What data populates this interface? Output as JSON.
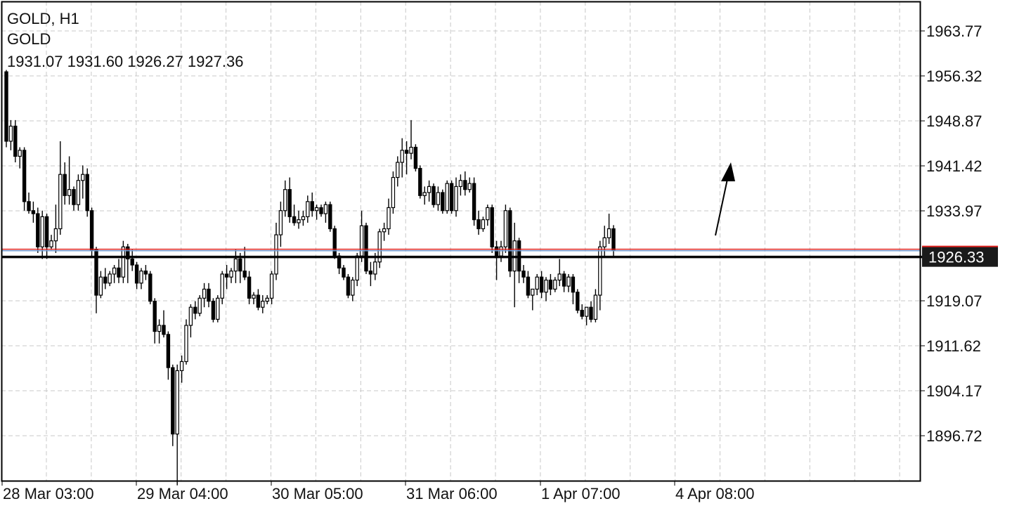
{
  "header": {
    "symbol_timeframe": "GOLD, H1",
    "symbol_name": "GOLD",
    "ohlc": "1931.07 1931.60 1926.27 1927.36"
  },
  "colors": {
    "background": "#ffffff",
    "grid": "#c8c8c8",
    "candle": "#000000",
    "bid_line": "#e0221f",
    "ask_line": "#6e9fd8",
    "horizontal_line": "#000000",
    "price_label_bg": "#1a1a1a"
  },
  "chart_data": {
    "type": "candlestick",
    "title": "GOLD, H1",
    "y_ticks": [
      "1963.77",
      "1956.32",
      "1948.87",
      "1941.42",
      "1933.97",
      "1926.33",
      "1919.07",
      "1911.62",
      "1904.17",
      "1896.72"
    ],
    "ylim": [
      1888,
      1966
    ],
    "x_ticks": [
      "28 Mar 03:00",
      "29 Mar 04:00",
      "30 Mar 05:00",
      "31 Mar 06:00",
      "1 Apr 07:00",
      "4 Apr 08:00"
    ],
    "grid": true,
    "current_price_label": "1926.33",
    "horizontal_line": 1926.33,
    "bid_line": 1927.36,
    "ask_line": 1927.61,
    "annotation": "up-arrow",
    "candles": [
      [
        1957.0,
        1957.3,
        1944.5,
        1945.5
      ],
      [
        1945.5,
        1949.0,
        1944.0,
        1948.0
      ],
      [
        1948.0,
        1949.0,
        1942.0,
        1943.0
      ],
      [
        1943.0,
        1944.5,
        1941.0,
        1944.0
      ],
      [
        1944.0,
        1944.5,
        1934.0,
        1935.5
      ],
      [
        1935.5,
        1937.0,
        1933.5,
        1934.0
      ],
      [
        1934.0,
        1935.5,
        1932.0,
        1933.5
      ],
      [
        1933.5,
        1934.5,
        1927.0,
        1928.0
      ],
      [
        1928.0,
        1934.0,
        1926.0,
        1933.0
      ],
      [
        1933.0,
        1933.5,
        1926.0,
        1928.0
      ],
      [
        1928.0,
        1930.0,
        1927.5,
        1929.0
      ],
      [
        1929.0,
        1935.0,
        1927.0,
        1931.0
      ],
      [
        1931.0,
        1945.5,
        1930.0,
        1940.0
      ],
      [
        1940.0,
        1942.0,
        1935.0,
        1936.5
      ],
      [
        1936.5,
        1943.0,
        1935.0,
        1937.5
      ],
      [
        1937.5,
        1938.0,
        1934.0,
        1935.0
      ],
      [
        1935.0,
        1940.0,
        1934.0,
        1939.0
      ],
      [
        1939.0,
        1941.5,
        1936.0,
        1940.0
      ],
      [
        1940.0,
        1941.0,
        1933.0,
        1934.0
      ],
      [
        1934.0,
        1934.5,
        1926.5,
        1927.5
      ],
      [
        1927.5,
        1928.0,
        1917.0,
        1920.0
      ],
      [
        1920.0,
        1924.0,
        1919.5,
        1923.0
      ],
      [
        1923.0,
        1924.5,
        1921.0,
        1922.0
      ],
      [
        1922.0,
        1924.0,
        1921.5,
        1923.5
      ],
      [
        1923.5,
        1925.0,
        1922.0,
        1924.5
      ],
      [
        1924.5,
        1926.0,
        1922.0,
        1923.0
      ],
      [
        1923.0,
        1929.0,
        1922.0,
        1928.0
      ],
      [
        1928.0,
        1928.5,
        1922.0,
        1926.0
      ],
      [
        1926.0,
        1927.5,
        1924.0,
        1925.0
      ],
      [
        1925.0,
        1925.5,
        1921.0,
        1922.0
      ],
      [
        1922.0,
        1924.5,
        1921.0,
        1924.0
      ],
      [
        1924.0,
        1925.0,
        1922.5,
        1923.5
      ],
      [
        1923.5,
        1924.0,
        1918.5,
        1919.0
      ],
      [
        1919.0,
        1919.5,
        1912.0,
        1914.0
      ],
      [
        1914.0,
        1916.0,
        1912.0,
        1915.0
      ],
      [
        1915.0,
        1917.5,
        1913.0,
        1913.5
      ],
      [
        1913.5,
        1914.0,
        1906.0,
        1908.0
      ],
      [
        1908.0,
        1908.5,
        1895.0,
        1897.0
      ],
      [
        1897.0,
        1908.5,
        1888.5,
        1907.5
      ],
      [
        1907.5,
        1910.0,
        1905.5,
        1909.0
      ],
      [
        1909.0,
        1916.0,
        1908.5,
        1915.0
      ],
      [
        1915.0,
        1918.5,
        1913.0,
        1918.0
      ],
      [
        1918.0,
        1919.0,
        1916.0,
        1917.0
      ],
      [
        1917.0,
        1920.0,
        1916.5,
        1919.5
      ],
      [
        1919.5,
        1922.0,
        1918.0,
        1921.0
      ],
      [
        1921.0,
        1922.0,
        1918.0,
        1919.0
      ],
      [
        1919.0,
        1919.5,
        1915.5,
        1916.0
      ],
      [
        1916.0,
        1920.0,
        1915.5,
        1919.5
      ],
      [
        1919.5,
        1924.0,
        1918.5,
        1923.5
      ],
      [
        1923.5,
        1925.0,
        1921.0,
        1923.0
      ],
      [
        1923.0,
        1924.5,
        1922.0,
        1924.0
      ],
      [
        1924.0,
        1927.5,
        1922.0,
        1926.0
      ],
      [
        1926.0,
        1927.0,
        1922.0,
        1924.0
      ],
      [
        1924.0,
        1928.0,
        1922.5,
        1923.0
      ],
      [
        1923.0,
        1924.0,
        1918.5,
        1919.5
      ],
      [
        1919.5,
        1920.5,
        1918.5,
        1920.0
      ],
      [
        1920.0,
        1921.0,
        1917.5,
        1918.0
      ],
      [
        1918.0,
        1920.0,
        1917.0,
        1919.0
      ],
      [
        1919.0,
        1920.0,
        1918.5,
        1919.5
      ],
      [
        1919.5,
        1924.0,
        1918.5,
        1923.5
      ],
      [
        1923.5,
        1932.0,
        1922.5,
        1930.0
      ],
      [
        1930.0,
        1935.5,
        1928.0,
        1934.0
      ],
      [
        1934.0,
        1939.0,
        1933.0,
        1937.5
      ],
      [
        1937.5,
        1939.5,
        1932.0,
        1933.0
      ],
      [
        1933.0,
        1935.0,
        1931.5,
        1932.0
      ],
      [
        1932.0,
        1934.0,
        1931.0,
        1932.5
      ],
      [
        1932.5,
        1934.0,
        1931.5,
        1933.0
      ],
      [
        1933.0,
        1936.5,
        1932.0,
        1935.5
      ],
      [
        1935.5,
        1937.0,
        1933.0,
        1934.0
      ],
      [
        1934.0,
        1935.0,
        1932.5,
        1934.5
      ],
      [
        1934.5,
        1935.0,
        1933.0,
        1933.5
      ],
      [
        1933.5,
        1935.5,
        1932.0,
        1935.0
      ],
      [
        1935.0,
        1935.5,
        1930.5,
        1931.0
      ],
      [
        1931.0,
        1931.5,
        1926.0,
        1926.5
      ],
      [
        1926.5,
        1927.0,
        1923.5,
        1924.5
      ],
      [
        1924.5,
        1925.0,
        1922.5,
        1923.0
      ],
      [
        1923.0,
        1923.5,
        1919.5,
        1920.0
      ],
      [
        1920.0,
        1923.0,
        1919.0,
        1922.5
      ],
      [
        1922.5,
        1927.0,
        1921.5,
        1926.5
      ],
      [
        1926.5,
        1934.0,
        1925.5,
        1931.5
      ],
      [
        1931.5,
        1932.0,
        1923.5,
        1924.0
      ],
      [
        1924.0,
        1925.5,
        1921.5,
        1923.5
      ],
      [
        1923.5,
        1927.0,
        1922.5,
        1925.5
      ],
      [
        1925.5,
        1931.0,
        1924.5,
        1930.5
      ],
      [
        1930.5,
        1932.0,
        1929.0,
        1931.0
      ],
      [
        1931.0,
        1936.0,
        1930.0,
        1934.5
      ],
      [
        1934.5,
        1940.5,
        1933.5,
        1939.5
      ],
      [
        1939.5,
        1943.0,
        1938.0,
        1942.0
      ],
      [
        1942.0,
        1946.0,
        1939.5,
        1944.0
      ],
      [
        1944.0,
        1945.5,
        1940.0,
        1943.5
      ],
      [
        1943.5,
        1949.0,
        1942.5,
        1944.5
      ],
      [
        1944.5,
        1945.0,
        1940.5,
        1941.0
      ],
      [
        1941.0,
        1941.5,
        1936.0,
        1936.5
      ],
      [
        1936.5,
        1938.0,
        1935.0,
        1937.0
      ],
      [
        1937.0,
        1939.0,
        1935.5,
        1938.0
      ],
      [
        1938.0,
        1938.5,
        1934.5,
        1935.0
      ],
      [
        1935.0,
        1938.0,
        1934.0,
        1937.0
      ],
      [
        1937.0,
        1937.5,
        1933.5,
        1934.0
      ],
      [
        1934.0,
        1939.0,
        1933.5,
        1938.5
      ],
      [
        1938.5,
        1939.0,
        1933.5,
        1934.0
      ],
      [
        1934.0,
        1939.5,
        1933.0,
        1938.0
      ],
      [
        1938.0,
        1940.0,
        1936.5,
        1939.0
      ],
      [
        1939.0,
        1940.5,
        1936.5,
        1937.5
      ],
      [
        1937.5,
        1939.5,
        1937.0,
        1938.5
      ],
      [
        1938.5,
        1939.5,
        1931.5,
        1932.5
      ],
      [
        1932.5,
        1934.0,
        1930.0,
        1931.0
      ],
      [
        1931.0,
        1933.0,
        1930.5,
        1932.5
      ],
      [
        1932.5,
        1935.0,
        1931.5,
        1934.5
      ],
      [
        1934.5,
        1935.0,
        1927.0,
        1928.0
      ],
      [
        1928.0,
        1929.0,
        1922.5,
        1926.5
      ],
      [
        1926.5,
        1929.0,
        1925.5,
        1928.0
      ],
      [
        1928.0,
        1935.0,
        1927.0,
        1934.0
      ],
      [
        1934.0,
        1934.5,
        1923.0,
        1924.0
      ],
      [
        1924.0,
        1932.0,
        1918.0,
        1929.0
      ],
      [
        1929.0,
        1929.5,
        1922.0,
        1924.0
      ],
      [
        1924.0,
        1925.0,
        1922.0,
        1923.0
      ],
      [
        1923.0,
        1924.0,
        1919.5,
        1920.0
      ],
      [
        1920.0,
        1920.5,
        1917.5,
        1921.0
      ],
      [
        1921.0,
        1923.5,
        1920.0,
        1923.0
      ],
      [
        1923.0,
        1924.0,
        1919.5,
        1920.5
      ],
      [
        1920.5,
        1923.0,
        1919.0,
        1922.5
      ],
      [
        1922.5,
        1923.5,
        1920.0,
        1921.0
      ],
      [
        1921.0,
        1923.0,
        1920.5,
        1922.5
      ],
      [
        1922.5,
        1926.0,
        1921.5,
        1923.5
      ],
      [
        1923.5,
        1924.0,
        1920.5,
        1921.5
      ],
      [
        1921.5,
        1923.5,
        1920.5,
        1923.0
      ],
      [
        1923.0,
        1923.5,
        1918.5,
        1920.5
      ],
      [
        1920.5,
        1921.0,
        1917.0,
        1917.5
      ],
      [
        1917.5,
        1918.5,
        1916.0,
        1916.5
      ],
      [
        1916.5,
        1917.5,
        1915.0,
        1918.0
      ],
      [
        1918.0,
        1919.0,
        1915.5,
        1916.0
      ],
      [
        1916.0,
        1921.0,
        1915.5,
        1920.0
      ],
      [
        1920.0,
        1929.0,
        1917.5,
        1928.0
      ],
      [
        1928.0,
        1931.5,
        1926.5,
        1929.5
      ],
      [
        1929.5,
        1933.5,
        1928.5,
        1931.0
      ],
      [
        1931.0,
        1931.6,
        1926.27,
        1927.36
      ]
    ]
  }
}
